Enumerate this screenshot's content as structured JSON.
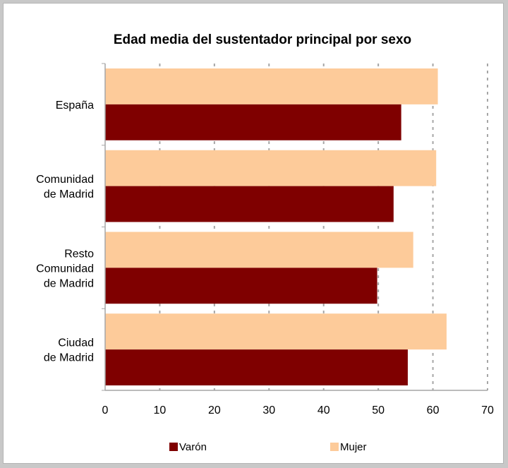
{
  "chart_data": {
    "type": "bar",
    "orientation": "horizontal",
    "title": "Edad media del sustentador principal por sexo",
    "categories": [
      [
        "España"
      ],
      [
        "Comunidad",
        "de Madrid"
      ],
      [
        "Resto",
        "Comunidad",
        "de Madrid"
      ],
      [
        "Ciudad",
        "de Madrid"
      ]
    ],
    "series": [
      {
        "name": "Varón",
        "color": "#7f0000",
        "values": [
          54.2,
          52.8,
          49.8,
          55.4
        ]
      },
      {
        "name": "Mujer",
        "color": "#fdcb9a",
        "values": [
          60.9,
          60.6,
          56.4,
          62.5
        ]
      }
    ],
    "xlim": [
      0,
      70
    ],
    "xticks": [
      "0",
      "10",
      "20",
      "30",
      "40",
      "50",
      "60",
      "70"
    ],
    "grid": true,
    "legend_position": "bottom"
  }
}
